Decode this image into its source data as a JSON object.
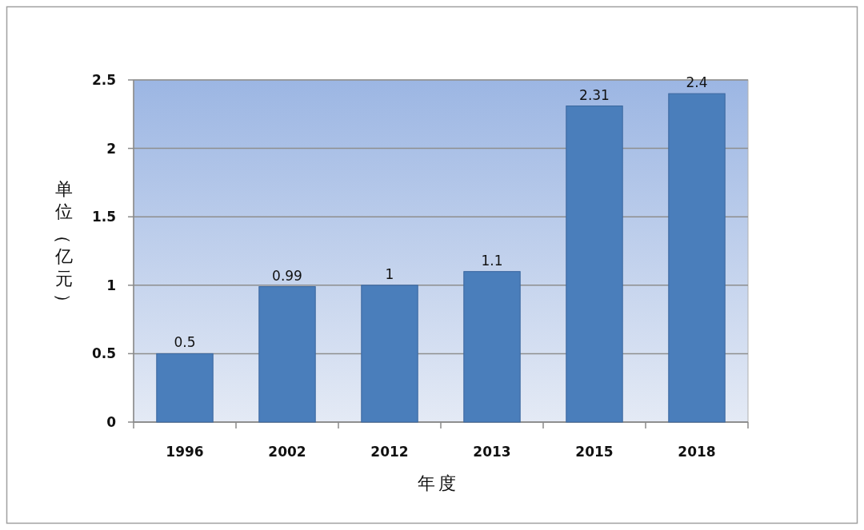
{
  "chart_data": {
    "type": "bar",
    "xlabel": "年度",
    "ylabel": "单位（亿元）",
    "categories": [
      "1996",
      "2002",
      "2012",
      "2013",
      "2015",
      "2018"
    ],
    "values": [
      0.5,
      0.99,
      1,
      1.1,
      2.31,
      2.4
    ],
    "color": "#4a7ebb",
    "ylim": [
      0,
      2.5
    ],
    "yticks": [
      0,
      0.5,
      1,
      1.5,
      2,
      2.5
    ],
    "grid": "y",
    "data_labels": true
  }
}
